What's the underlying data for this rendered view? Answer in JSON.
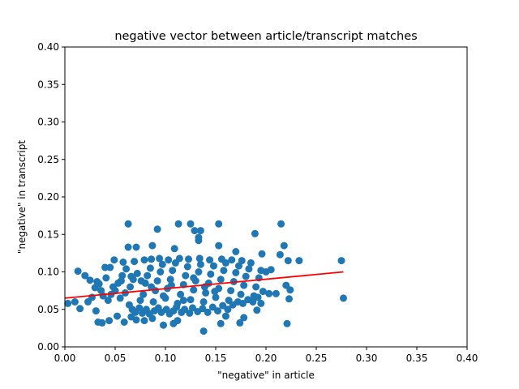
{
  "chart_data": {
    "type": "scatter",
    "title": "negative vector between article/transcript matches",
    "xlabel": "\"negative\" in article",
    "ylabel": "\"negative\" in transcript",
    "xlim": [
      0.0,
      0.4
    ],
    "ylim": [
      0.0,
      0.4
    ],
    "xticks": [
      "0.00",
      "0.05",
      "0.10",
      "0.15",
      "0.20",
      "0.25",
      "0.30",
      "0.35",
      "0.40"
    ],
    "yticks": [
      "0.00",
      "0.05",
      "0.10",
      "0.15",
      "0.20",
      "0.25",
      "0.30",
      "0.35",
      "0.40"
    ],
    "grid": false,
    "marker_color": "#1f77b4",
    "fit_line_color": "#ff0000",
    "fit_line": {
      "x": [
        0.0,
        0.277
      ],
      "y": [
        0.065,
        0.1
      ]
    },
    "series": [
      {
        "points": [
          [
            0.063,
            0.164
          ],
          [
            0.092,
            0.157
          ],
          [
            0.113,
            0.164
          ],
          [
            0.125,
            0.164
          ],
          [
            0.129,
            0.155
          ],
          [
            0.135,
            0.155
          ],
          [
            0.153,
            0.164
          ],
          [
            0.215,
            0.164
          ],
          [
            0.189,
            0.151
          ],
          [
            0.133,
            0.146
          ],
          [
            0.133,
            0.142
          ],
          [
            0.063,
            0.133
          ],
          [
            0.071,
            0.133
          ],
          [
            0.087,
            0.135
          ],
          [
            0.109,
            0.131
          ],
          [
            0.153,
            0.135
          ],
          [
            0.218,
            0.135
          ],
          [
            0.275,
            0.115
          ],
          [
            0.233,
            0.115
          ],
          [
            0.222,
            0.115
          ],
          [
            0.214,
            0.123
          ],
          [
            0.196,
            0.124
          ],
          [
            0.17,
            0.127
          ],
          [
            0.013,
            0.101
          ],
          [
            0.02,
            0.095
          ],
          [
            0.025,
            0.089
          ],
          [
            0.03,
            0.079
          ],
          [
            0.032,
            0.087
          ],
          [
            0.034,
            0.084
          ],
          [
            0.04,
            0.106
          ],
          [
            0.045,
            0.106
          ],
          [
            0.049,
            0.116
          ],
          [
            0.003,
            0.058
          ],
          [
            0.01,
            0.06
          ],
          [
            0.015,
            0.051
          ],
          [
            0.023,
            0.06
          ],
          [
            0.031,
            0.048
          ],
          [
            0.033,
            0.033
          ],
          [
            0.037,
            0.032
          ],
          [
            0.044,
            0.035
          ],
          [
            0.052,
            0.041
          ],
          [
            0.059,
            0.033
          ],
          [
            0.066,
            0.04
          ],
          [
            0.071,
            0.036
          ],
          [
            0.079,
            0.035
          ],
          [
            0.087,
            0.038
          ],
          [
            0.098,
            0.029
          ],
          [
            0.108,
            0.031
          ],
          [
            0.112,
            0.035
          ],
          [
            0.138,
            0.021
          ],
          [
            0.155,
            0.031
          ],
          [
            0.16,
            0.041
          ],
          [
            0.174,
            0.032
          ],
          [
            0.178,
            0.039
          ],
          [
            0.191,
            0.049
          ],
          [
            0.195,
            0.058
          ],
          [
            0.203,
            0.071
          ],
          [
            0.21,
            0.071
          ],
          [
            0.22,
            0.082
          ],
          [
            0.224,
            0.076
          ],
          [
            0.221,
            0.031
          ],
          [
            0.223,
            0.064
          ],
          [
            0.2,
            0.1
          ],
          [
            0.205,
            0.103
          ],
          [
            0.277,
            0.065
          ],
          [
            0.055,
            0.065
          ],
          [
            0.06,
            0.072
          ],
          [
            0.065,
            0.08
          ],
          [
            0.068,
            0.09
          ],
          [
            0.072,
            0.098
          ],
          [
            0.075,
            0.062
          ],
          [
            0.078,
            0.07
          ],
          [
            0.08,
            0.085
          ],
          [
            0.082,
            0.095
          ],
          [
            0.085,
            0.105
          ],
          [
            0.088,
            0.06
          ],
          [
            0.09,
            0.075
          ],
          [
            0.092,
            0.088
          ],
          [
            0.095,
            0.1
          ],
          [
            0.097,
            0.11
          ],
          [
            0.1,
            0.065
          ],
          [
            0.102,
            0.078
          ],
          [
            0.105,
            0.09
          ],
          [
            0.107,
            0.102
          ],
          [
            0.11,
            0.112
          ],
          [
            0.112,
            0.058
          ],
          [
            0.115,
            0.07
          ],
          [
            0.118,
            0.083
          ],
          [
            0.12,
            0.095
          ],
          [
            0.122,
            0.107
          ],
          [
            0.125,
            0.063
          ],
          [
            0.128,
            0.076
          ],
          [
            0.13,
            0.088
          ],
          [
            0.133,
            0.1
          ],
          [
            0.135,
            0.11
          ],
          [
            0.138,
            0.06
          ],
          [
            0.14,
            0.072
          ],
          [
            0.143,
            0.085
          ],
          [
            0.145,
            0.097
          ],
          [
            0.148,
            0.108
          ],
          [
            0.15,
            0.066
          ],
          [
            0.153,
            0.078
          ],
          [
            0.155,
            0.09
          ],
          [
            0.158,
            0.102
          ],
          [
            0.16,
            0.112
          ],
          [
            0.163,
            0.062
          ],
          [
            0.165,
            0.075
          ],
          [
            0.168,
            0.087
          ],
          [
            0.17,
            0.099
          ],
          [
            0.173,
            0.108
          ],
          [
            0.175,
            0.07
          ],
          [
            0.178,
            0.082
          ],
          [
            0.18,
            0.094
          ],
          [
            0.183,
            0.104
          ],
          [
            0.185,
            0.112
          ],
          [
            0.188,
            0.068
          ],
          [
            0.19,
            0.08
          ],
          [
            0.193,
            0.092
          ],
          [
            0.195,
            0.102
          ],
          [
            0.05,
            0.075
          ],
          [
            0.053,
            0.085
          ],
          [
            0.057,
            0.095
          ],
          [
            0.061,
            0.104
          ],
          [
            0.064,
            0.056
          ],
          [
            0.067,
            0.05
          ],
          [
            0.07,
            0.046
          ],
          [
            0.074,
            0.052
          ],
          [
            0.077,
            0.045
          ],
          [
            0.081,
            0.05
          ],
          [
            0.084,
            0.044
          ],
          [
            0.089,
            0.048
          ],
          [
            0.093,
            0.052
          ],
          [
            0.096,
            0.046
          ],
          [
            0.101,
            0.05
          ],
          [
            0.104,
            0.044
          ],
          [
            0.108,
            0.048
          ],
          [
            0.111,
            0.053
          ],
          [
            0.116,
            0.046
          ],
          [
            0.119,
            0.05
          ],
          [
            0.124,
            0.045
          ],
          [
            0.127,
            0.052
          ],
          [
            0.132,
            0.047
          ],
          [
            0.137,
            0.051
          ],
          [
            0.142,
            0.046
          ],
          [
            0.147,
            0.053
          ],
          [
            0.152,
            0.048
          ],
          [
            0.157,
            0.055
          ],
          [
            0.162,
            0.05
          ],
          [
            0.167,
            0.056
          ],
          [
            0.172,
            0.06
          ],
          [
            0.177,
            0.058
          ],
          [
            0.182,
            0.063
          ],
          [
            0.187,
            0.06
          ],
          [
            0.192,
            0.066
          ],
          [
            0.197,
            0.074
          ],
          [
            0.043,
            0.062
          ],
          [
            0.046,
            0.07
          ],
          [
            0.048,
            0.08
          ],
          [
            0.041,
            0.092
          ],
          [
            0.038,
            0.068
          ],
          [
            0.036,
            0.075
          ],
          [
            0.027,
            0.066
          ],
          [
            0.058,
            0.113
          ],
          [
            0.069,
            0.114
          ],
          [
            0.079,
            0.116
          ],
          [
            0.086,
            0.117
          ],
          [
            0.094,
            0.118
          ],
          [
            0.103,
            0.116
          ],
          [
            0.114,
            0.118
          ],
          [
            0.123,
            0.117
          ],
          [
            0.134,
            0.118
          ],
          [
            0.144,
            0.116
          ],
          [
            0.156,
            0.117
          ],
          [
            0.166,
            0.116
          ],
          [
            0.176,
            0.115
          ],
          [
            0.106,
            0.082
          ],
          [
            0.098,
            0.068
          ],
          [
            0.118,
            0.062
          ],
          [
            0.128,
            0.092
          ],
          [
            0.139,
            0.08
          ],
          [
            0.149,
            0.074
          ],
          [
            0.086,
            0.08
          ],
          [
            0.076,
            0.088
          ],
          [
            0.066,
            0.094
          ],
          [
            0.056,
            0.088
          ]
        ]
      }
    ]
  }
}
